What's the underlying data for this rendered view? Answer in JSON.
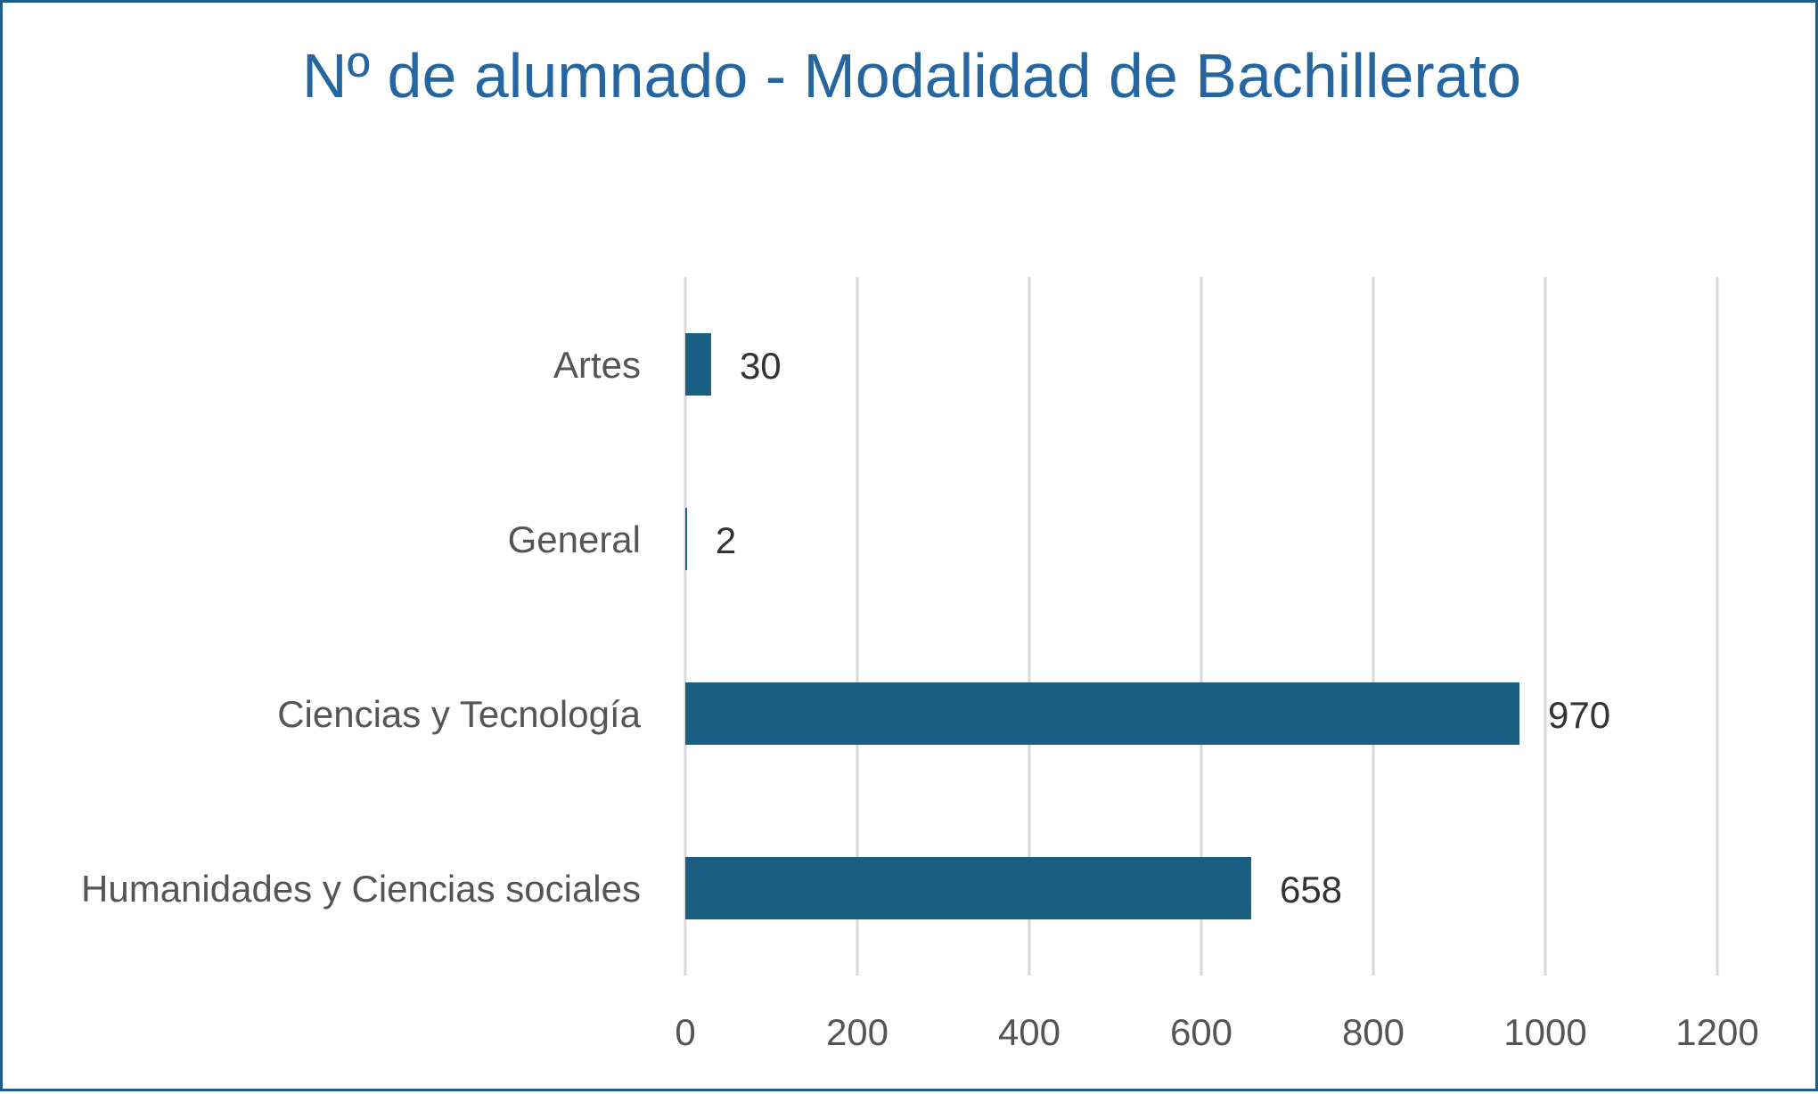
{
  "chart_data": {
    "type": "bar",
    "orientation": "horizontal",
    "title": "Nº de alumnado - Modalidad de Bachillerato",
    "categories": [
      "Artes",
      "General",
      "Ciencias y Tecnología",
      "Humanidades y Ciencias sociales"
    ],
    "values": [
      30,
      2,
      970,
      658
    ],
    "data_labels": [
      "30",
      "2",
      "970",
      "658"
    ],
    "xlim": [
      0,
      1200
    ],
    "x_ticks": [
      0,
      200,
      400,
      600,
      800,
      1000,
      1200
    ],
    "x_tick_labels": [
      "0",
      "200",
      "400",
      "600",
      "800",
      "1000",
      "1200"
    ],
    "grid": true,
    "legend": "none",
    "colors": {
      "bar": "#1a5f82",
      "title": "#2566a0",
      "gridline": "#d9d9d9",
      "border": "#1f5d8a"
    }
  }
}
